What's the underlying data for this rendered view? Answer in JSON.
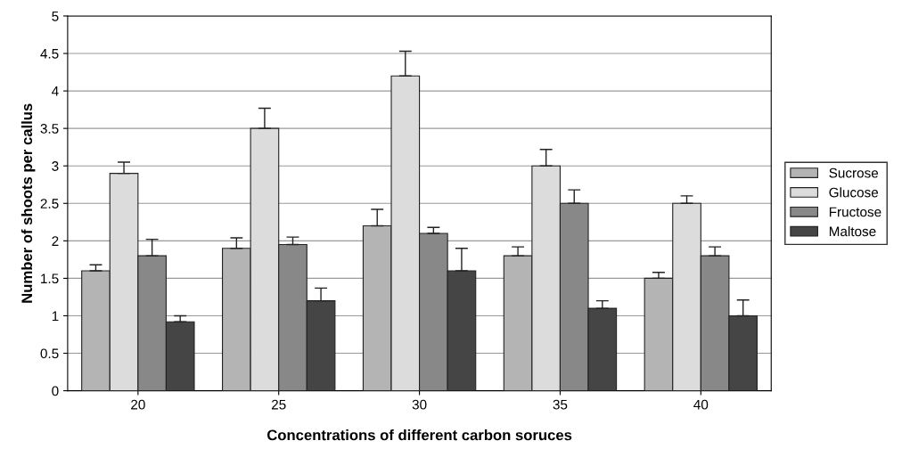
{
  "chart_data": {
    "type": "bar",
    "xlabel": "Concentrations of different carbon soruces",
    "ylabel": "Number of shoots per callus",
    "categories": [
      "20",
      "25",
      "30",
      "35",
      "40"
    ],
    "series": [
      {
        "name": "Sucrose",
        "color": "#b4b4b4",
        "values": [
          1.6,
          1.9,
          2.2,
          1.8,
          1.5
        ],
        "errors": [
          [
            1.6,
            1.68
          ],
          [
            1.9,
            2.04
          ],
          [
            2.2,
            2.42
          ],
          [
            1.8,
            1.92
          ],
          [
            1.5,
            1.58
          ]
        ]
      },
      {
        "name": "Glucose",
        "color": "#dcdcdc",
        "values": [
          2.9,
          3.5,
          4.2,
          3.0,
          2.5
        ],
        "errors": [
          [
            2.9,
            3.05
          ],
          [
            3.5,
            3.77
          ],
          [
            4.2,
            4.53
          ],
          [
            3.0,
            3.22
          ],
          [
            2.5,
            2.6
          ]
        ]
      },
      {
        "name": "Fructose",
        "color": "#888888",
        "values": [
          1.8,
          1.95,
          2.1,
          2.5,
          1.8
        ],
        "errors": [
          [
            1.8,
            2.02
          ],
          [
            1.95,
            2.05
          ],
          [
            2.1,
            2.18
          ],
          [
            2.5,
            2.68
          ],
          [
            1.8,
            1.92
          ]
        ]
      },
      {
        "name": "Maltose",
        "color": "#454545",
        "values": [
          0.92,
          1.2,
          1.6,
          1.1,
          1.0
        ],
        "errors": [
          [
            0.92,
            1.0
          ],
          [
            1.2,
            1.37
          ],
          [
            1.6,
            1.9
          ],
          [
            1.1,
            1.2
          ],
          [
            1.0,
            1.21
          ]
        ]
      }
    ],
    "ylim": [
      0,
      5
    ],
    "yticks": [
      0,
      0.5,
      1,
      1.5,
      2,
      2.5,
      3,
      3.5,
      4,
      4.5,
      5
    ],
    "grid": "y",
    "legend": "right"
  }
}
